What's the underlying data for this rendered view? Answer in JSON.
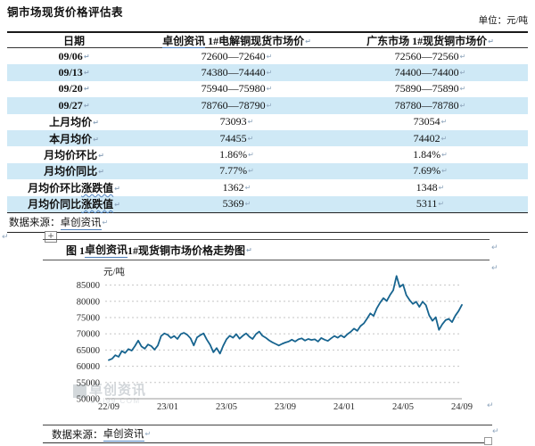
{
  "document": {
    "title": "铜市场现货价格评估表",
    "unit_label": "单位：元/吨"
  },
  "marks": {
    "para": "↵"
  },
  "table": {
    "header": {
      "col1": "日期",
      "col2_link": "卓创资讯",
      "col2_rest": " 1#电解铜现货市场价",
      "col3": "广东市场 1#现货铜市场价"
    },
    "rows": [
      {
        "label": "09/06",
        "label_u": "",
        "v1": "72600—72640",
        "v2": "72560—72560"
      },
      {
        "label": "09/13",
        "label_u": "",
        "v1": "74380—74440",
        "v2": "74400—74400"
      },
      {
        "label": "09/20",
        "label_u": "",
        "v1": "75940—75980",
        "v2": "75890—75890"
      },
      {
        "label": "09/27",
        "label_u": "",
        "v1": "78760—78790",
        "v2": "78780—78780"
      },
      {
        "label": "上月均价",
        "label_u": "",
        "v1": "73093",
        "v2": "73054"
      },
      {
        "label": "本月均价",
        "label_u": "",
        "v1": "74455",
        "v2": "74402"
      },
      {
        "label": "月均价环比",
        "label_u": "",
        "v1": "1.86%",
        "v2": "1.84%"
      },
      {
        "label": "月均价同比",
        "label_u": "",
        "v1": "7.77%",
        "v2": "7.69%"
      },
      {
        "label": "月均价环比",
        "label_u": "涨跌值",
        "v1": "1362",
        "v2": "1348"
      },
      {
        "label": "月均价同比",
        "label_u": "涨跌值",
        "v1": "5369",
        "v2": "5311"
      }
    ],
    "source_prefix": "数据来源：",
    "source_link": "卓创资讯"
  },
  "figure": {
    "title_prefix": "图 1 ",
    "title_link": "卓创资讯",
    "title_suffix": " 1#现货铜市场价格走势图",
    "y_unit": "元/吨",
    "watermark_text": "卓创资讯",
    "watermark_sub": "SCI99.COM",
    "source_prefix": "数据来源：",
    "source_link": "卓创资讯"
  },
  "chart_data": {
    "type": "line",
    "title": "卓创资讯1#现货铜市场价格走势图",
    "ylabel": "元/吨",
    "xlabel": "",
    "legend": [],
    "grid": "dashed-horizontal",
    "ylim": [
      50000,
      89000
    ],
    "y_ticks": [
      50000,
      55000,
      60000,
      65000,
      70000,
      75000,
      80000,
      85000
    ],
    "x_ticks": [
      "22/09",
      "23/01",
      "23/05",
      "23/09",
      "24/01",
      "24/05",
      "24/09"
    ],
    "x_range_months": [
      0,
      24
    ],
    "line_color": "#17648f",
    "values": [
      61900,
      62300,
      63400,
      62900,
      64700,
      64100,
      65300,
      64800,
      66200,
      67900,
      66100,
      65400,
      66700,
      66200,
      65100,
      66400,
      69300,
      70100,
      69700,
      68700,
      69300,
      68400,
      69900,
      70300,
      69700,
      68600,
      66400,
      68900,
      69600,
      70100,
      68200,
      66600,
      64300,
      65600,
      63900,
      66300,
      68300,
      69400,
      68800,
      69900,
      68500,
      69400,
      70100,
      69100,
      68400,
      69900,
      70700,
      69400,
      68800,
      68000,
      67400,
      66900,
      66400,
      66900,
      67300,
      67600,
      68200,
      67600,
      68300,
      68600,
      67900,
      68400,
      68100,
      68300,
      67600,
      68700,
      68200,
      67800,
      68600,
      69300,
      68800,
      69500,
      68900,
      69900,
      70600,
      71600,
      70900,
      72400,
      73200,
      74700,
      76300,
      75500,
      77900,
      79600,
      81000,
      80100,
      81900,
      83400,
      87800,
      84400,
      85200,
      81900,
      80400,
      79200,
      79900,
      78300,
      79900,
      78800,
      75700,
      74000,
      75100,
      71200,
      72900,
      74200,
      74600,
      73600,
      75600,
      77000,
      78900
    ]
  }
}
